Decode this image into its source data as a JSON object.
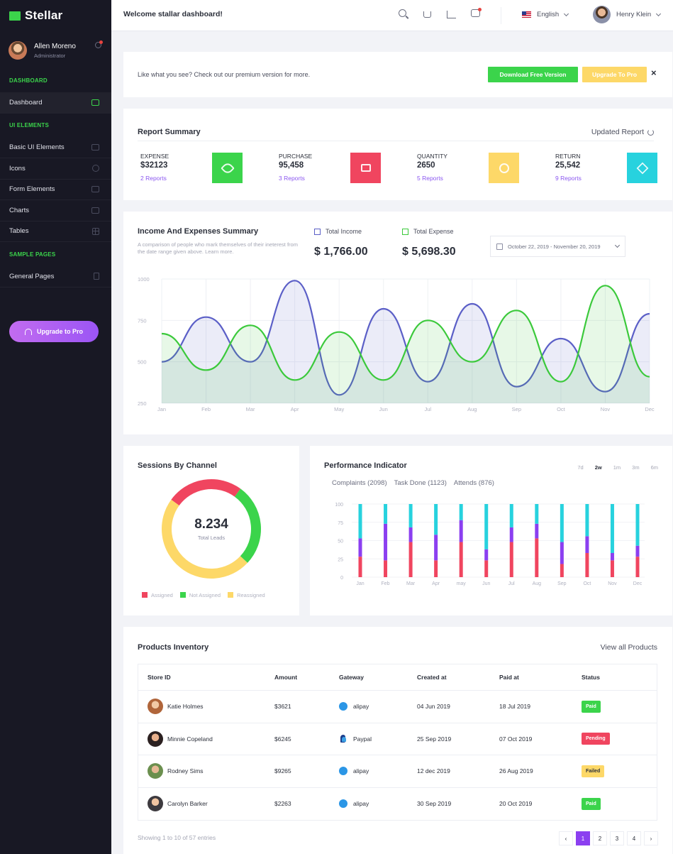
{
  "brand": {
    "name": "Stellar"
  },
  "profile": {
    "name": "Allen Moreno",
    "role": "Administrator"
  },
  "sidebar": {
    "sections": [
      {
        "title": "DASHBOARD",
        "items": [
          {
            "label": "Dashboard",
            "icon": "monitor-icon",
            "active": true
          }
        ]
      },
      {
        "title": "UI ELEMENTS",
        "items": [
          {
            "label": "Basic UI Elements",
            "icon": "cube-icon"
          },
          {
            "label": "Icons",
            "icon": "globe-icon"
          },
          {
            "label": "Form Elements",
            "icon": "form-icon"
          },
          {
            "label": "Charts",
            "icon": "bar-chart-icon"
          },
          {
            "label": "Tables",
            "icon": "grid-icon"
          }
        ]
      },
      {
        "title": "SAMPLE PAGES",
        "items": [
          {
            "label": "General Pages",
            "icon": "document-icon"
          }
        ]
      }
    ],
    "upgrade_label": "Upgrade to Pro"
  },
  "topbar": {
    "welcome": "Welcome stallar dashboard!",
    "language": "English",
    "user_name": "Henry Klein"
  },
  "promo": {
    "text": "Like what you see? Check out our premium version for more.",
    "download_label": "Download Free Version",
    "upgrade_label": "Upgrade To Pro",
    "close_label": "×"
  },
  "report": {
    "title": "Report Summary",
    "updated_label": "Updated Report",
    "stats": [
      {
        "label": "EXPENSE",
        "value": "$32123",
        "link": "2 Reports",
        "color": "#3bd44b",
        "icon": "rocket-icon"
      },
      {
        "label": "PURCHASE",
        "value": "95,458",
        "link": "3 Reports",
        "color": "#f0455f",
        "icon": "briefcase-icon"
      },
      {
        "label": "QUANTITY",
        "value": "2650",
        "link": "5 Reports",
        "color": "#fdd868",
        "icon": "lightbulb-icon"
      },
      {
        "label": "RETURN",
        "value": "25,542",
        "link": "9 Reports",
        "color": "#27d2de",
        "icon": "diamond-icon"
      }
    ]
  },
  "income_chart": {
    "title": "Income And Expenses Summary",
    "subtitle": "A comparison of people who mark themselves of their ineterest from the date range given above. Learn more.",
    "income_label": "Total Income",
    "income_value": "$ 1,766.00",
    "expense_label": "Total Expense",
    "expense_value": "$ 5,698.30",
    "date_range": "October 22, 2019 - November 20, 2019",
    "colors": {
      "income": "#5b5fc7",
      "expense": "#3bc93b"
    }
  },
  "sessions": {
    "title": "Sessions By Channel",
    "total_value": "8.234",
    "total_label": "Total Leads",
    "legend": [
      {
        "label": "Assigned",
        "color": "#f0455f"
      },
      {
        "label": "Not Assigned",
        "color": "#3bd44b"
      },
      {
        "label": "Reassigned",
        "color": "#fdd868"
      }
    ]
  },
  "performance": {
    "title": "Performance Indicator",
    "periods": [
      "7d",
      "2w",
      "1m",
      "3m",
      "6m"
    ],
    "active_period": "2w",
    "tabs": [
      "Complaints (2098)",
      "Task Done (1123)",
      "Attends (876)"
    ]
  },
  "inventory": {
    "title": "Products Inventory",
    "view_all": "View all Products",
    "columns": [
      "Store ID",
      "Amount",
      "Gateway",
      "Created at",
      "Paid at",
      "Status"
    ],
    "rows": [
      {
        "name": "Katie Holmes",
        "amount": "$3621",
        "gateway": "alipay",
        "created": "04 Jun 2019",
        "paid": "18 Jul 2019",
        "status": "Paid"
      },
      {
        "name": "Minnie Copeland",
        "amount": "$6245",
        "gateway": "Paypal",
        "created": "25 Sep 2019",
        "paid": "07 Oct 2019",
        "status": "Pending"
      },
      {
        "name": "Rodney Sims",
        "amount": "$9265",
        "gateway": "alipay",
        "created": "12 dec 2019",
        "paid": "26 Aug 2019",
        "status": "Failed"
      },
      {
        "name": "Carolyn Barker",
        "amount": "$2263",
        "gateway": "alipay",
        "created": "30 Sep 2019",
        "paid": "20 Oct 2019",
        "status": "Paid"
      }
    ],
    "showing": "Showing 1 to 10 of 57 entries",
    "pages": [
      "1",
      "2",
      "3",
      "4"
    ],
    "active_page": "1"
  },
  "chart_data": [
    {
      "type": "area",
      "x": [
        "Jan",
        "Feb",
        "Mar",
        "Apr",
        "May",
        "Jun",
        "Jul",
        "Aug",
        "Sep",
        "Oct",
        "Nov",
        "Dec"
      ],
      "yticks": [
        1000,
        750,
        500,
        250
      ],
      "ylim": [
        250,
        1000
      ],
      "series": [
        {
          "name": "Total Income",
          "values": [
            500,
            770,
            500,
            990,
            300,
            820,
            380,
            850,
            350,
            640,
            320,
            790
          ]
        },
        {
          "name": "Total Expense",
          "values": [
            670,
            450,
            720,
            390,
            680,
            390,
            750,
            500,
            810,
            380,
            960,
            410
          ]
        }
      ]
    },
    {
      "type": "pie",
      "title": "Sessions By Channel",
      "labels": [
        "Assigned",
        "Not Assigned",
        "Reassigned"
      ],
      "values": [
        25,
        27,
        48
      ]
    },
    {
      "type": "bar",
      "stacked": true,
      "categories": [
        "Jan",
        "Feb",
        "Mar",
        "Apr",
        "may",
        "Jun",
        "Jul",
        "Aug",
        "Sep",
        "Oct",
        "Nov",
        "Dec"
      ],
      "ylim": [
        0,
        100
      ],
      "yticks": [
        0,
        25,
        50,
        75,
        100
      ],
      "series": [
        {
          "color": "#f0455f",
          "values": [
            28,
            23,
            48,
            23,
            48,
            23,
            48,
            53,
            18,
            33,
            23,
            28
          ]
        },
        {
          "color": "#8b3ff0",
          "values": [
            25,
            50,
            20,
            35,
            30,
            15,
            20,
            20,
            30,
            23,
            10,
            15
          ]
        },
        {
          "color": "#27d2de",
          "values": [
            47,
            27,
            32,
            42,
            22,
            62,
            32,
            27,
            52,
            44,
            67,
            57
          ]
        }
      ]
    }
  ]
}
